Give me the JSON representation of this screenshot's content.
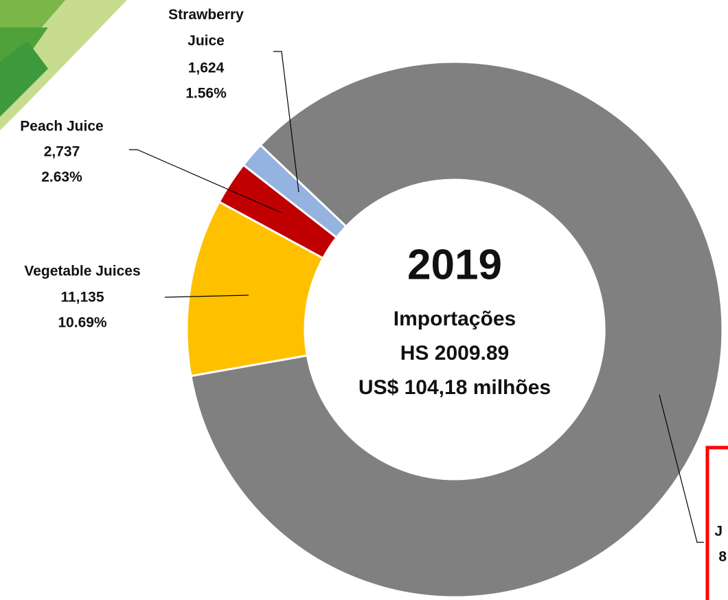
{
  "chart_data": {
    "type": "donut",
    "center_title": "2019",
    "center_lines": [
      "Importações",
      "HS 2009.89",
      "US$ 104,18 milhões"
    ],
    "categories": [
      "Vegetable Juices",
      "Peach Juice",
      "Strawberry Juice",
      "J"
    ],
    "values": [
      11135,
      2737,
      1624,
      88684
    ],
    "value_labels": [
      "11,135",
      "2,737",
      "1,624",
      null
    ],
    "percent_labels": [
      "10.69%",
      "2.63%",
      "1.56%",
      null
    ],
    "colors": [
      "#FFC000",
      "#C00000",
      "#95B3E0",
      "#808080"
    ],
    "annotations": [
      "8"
    ]
  }
}
